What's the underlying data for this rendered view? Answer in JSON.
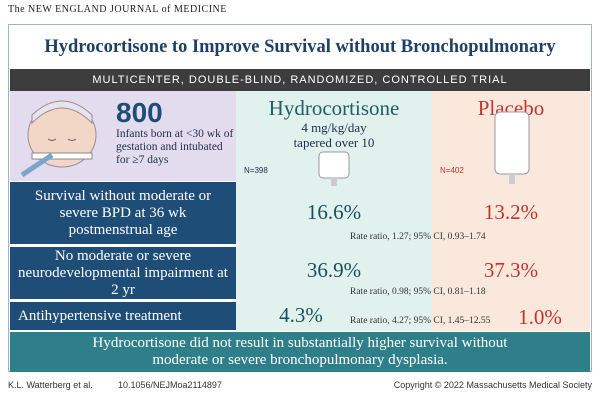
{
  "header": {
    "journal": "The NEW ENGLAND JOURNAL of MEDICINE"
  },
  "title": "Hydrocortisone to Improve Survival without Bronchopulmonary Dysplasia",
  "banner": "MULTICENTER, DOUBLE-BLIND, RANDOMIZED, CONTROLLED TRIAL",
  "population": {
    "count": "800",
    "description": "Infants born at <30 wk of gestation and intubated for ≥7 days"
  },
  "arms": [
    {
      "name": "Hydrocortisone",
      "dose": "4 mg/kg/day tapered over 10 days",
      "n": "N=398"
    },
    {
      "name": "Placebo",
      "n": "N=402"
    }
  ],
  "outcomes": [
    {
      "label": "Survival without moderate or severe BPD at 36 wk postmenstrual age",
      "hydrocortisone": "16.6%",
      "placebo": "13.2%",
      "statistic": "Rate ratio, 1.27; 95% CI, 0.93–1.74"
    },
    {
      "label": "No moderate or severe neurodevelopmental impairment at 2 yr",
      "hydrocortisone": "36.9%",
      "placebo": "37.3%",
      "statistic": "Rate ratio, 0.98; 95% CI, 0.81–1.18"
    },
    {
      "label": "Antihypertensive treatment",
      "hydrocortisone": "4.3%",
      "placebo": "1.0%",
      "statistic": "Rate ratio, 4.27; 95% CI, 1.45–12.55"
    }
  ],
  "conclusion": "Hydrocortisone did not result in substantially higher survival without moderate or severe bronchopulmonary dysplasia.",
  "footer": {
    "authors": "K.L. Watterberg et al.",
    "doi": "10.1056/NEJMoa2114897",
    "copyright": "Copyright © 2022 Massachusetts Medical Society"
  }
}
